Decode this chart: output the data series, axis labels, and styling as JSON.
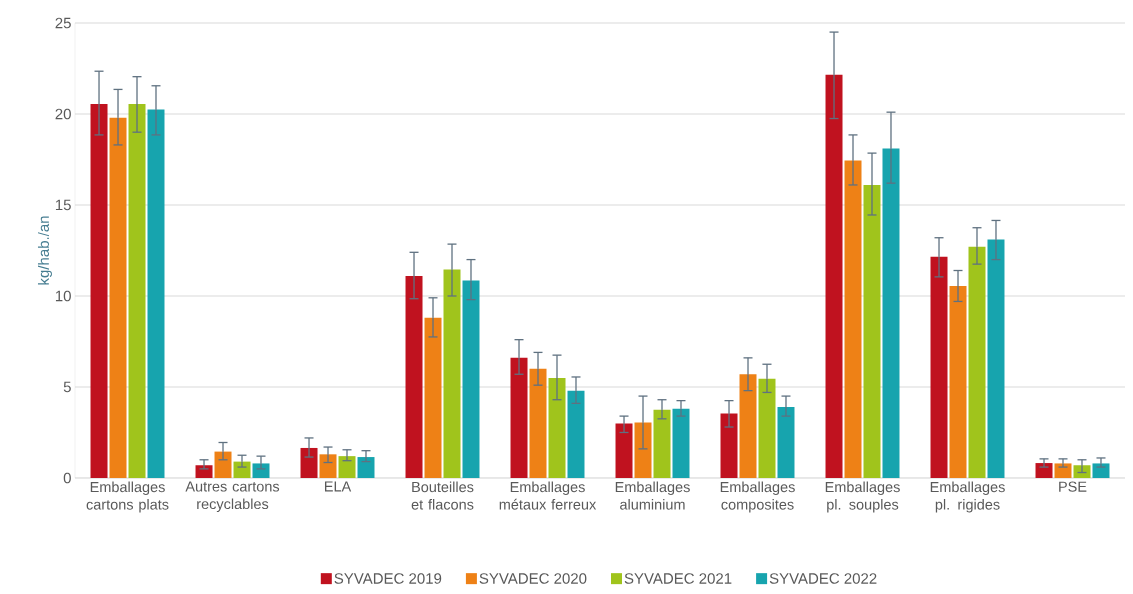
{
  "chart_data": {
    "type": "bar",
    "ylabel": "kg/hab./an",
    "categories": [
      "Emballages cartons plats",
      "Autres cartons recyclables",
      "ELA",
      "Bouteilles et flacons",
      "Emballages métaux ferreux",
      "Emballages aluminium",
      "Emballages composites",
      "Emballages pl. souples",
      "Emballages pl. rigides",
      "PSE"
    ],
    "series": [
      {
        "name": "SYVADEC 2019",
        "color": "#c0121f",
        "values": [
          20.55,
          0.7,
          1.65,
          11.1,
          6.6,
          3.0,
          3.55,
          22.15,
          12.15,
          0.82
        ],
        "errors": [
          [
            18.85,
            22.35
          ],
          [
            0.5,
            1.0
          ],
          [
            1.15,
            2.2
          ],
          [
            9.85,
            12.4
          ],
          [
            5.7,
            7.6
          ],
          [
            2.5,
            3.4
          ],
          [
            2.8,
            4.25
          ],
          [
            19.75,
            24.5
          ],
          [
            11.05,
            13.2
          ],
          [
            0.6,
            1.05
          ]
        ]
      },
      {
        "name": "SYVADEC 2020",
        "color": "#ee8116",
        "values": [
          19.8,
          1.45,
          1.3,
          8.8,
          6.0,
          3.05,
          5.7,
          17.45,
          10.55,
          0.8
        ],
        "errors": [
          [
            18.3,
            21.35
          ],
          [
            1.0,
            1.95
          ],
          [
            0.85,
            1.7
          ],
          [
            7.75,
            9.9
          ],
          [
            5.1,
            6.9
          ],
          [
            1.6,
            4.5
          ],
          [
            4.8,
            6.6
          ],
          [
            16.1,
            18.85
          ],
          [
            9.7,
            11.4
          ],
          [
            0.6,
            1.05
          ]
        ]
      },
      {
        "name": "SYVADEC 2021",
        "color": "#a0c41c",
        "values": [
          20.55,
          0.9,
          1.2,
          11.45,
          5.5,
          3.75,
          5.45,
          16.1,
          12.7,
          0.7
        ],
        "errors": [
          [
            19.0,
            22.05
          ],
          [
            0.6,
            1.25
          ],
          [
            0.95,
            1.55
          ],
          [
            10.0,
            12.85
          ],
          [
            4.3,
            6.75
          ],
          [
            3.25,
            4.3
          ],
          [
            4.7,
            6.25
          ],
          [
            14.45,
            17.85
          ],
          [
            11.75,
            13.75
          ],
          [
            0.3,
            1.0
          ]
        ]
      },
      {
        "name": "SYVADEC 2022",
        "color": "#17a4ae",
        "values": [
          20.25,
          0.8,
          1.15,
          10.85,
          4.8,
          3.8,
          3.9,
          18.1,
          13.1,
          0.8
        ],
        "errors": [
          [
            18.85,
            21.55
          ],
          [
            0.5,
            1.2
          ],
          [
            0.9,
            1.5
          ],
          [
            9.8,
            12.0
          ],
          [
            4.1,
            5.55
          ],
          [
            3.4,
            4.25
          ],
          [
            3.4,
            4.5
          ],
          [
            16.2,
            20.1
          ],
          [
            12.0,
            14.15
          ],
          [
            0.6,
            1.1
          ]
        ]
      }
    ],
    "ylim": [
      0,
      25
    ],
    "yticks": [
      0,
      5,
      10,
      15,
      20,
      25
    ],
    "grid": "y",
    "legend": "bottom"
  }
}
